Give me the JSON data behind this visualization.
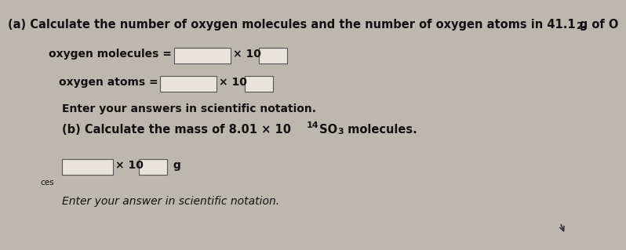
{
  "bg_color": "#bdb8ae",
  "title_main": "(a) Calculate the number of oxygen molecules and the number of oxygen atoms in 41.1 g of O",
  "title_sub2": "2",
  "title_dot": ".",
  "label_molecules": "oxygen molecules =",
  "label_atoms": "oxygen atoms =",
  "x10_text": "× 10",
  "enter_answers": "Enter your answers in scientific notation.",
  "part_b_prefix": "(b) Calculate the mass of 8.01 × 10",
  "part_b_sup": "14",
  "part_b_so": " SO",
  "part_b_sub3": "3",
  "part_b_end": " molecules.",
  "g_label": "g",
  "enter_answer_b": "Enter your answer in scientific notation.",
  "ces_label": "ces",
  "box_color": "#e8e4dc",
  "text_color": "#111111",
  "fs_title": 10.5,
  "fs_body": 10,
  "fs_small": 8
}
